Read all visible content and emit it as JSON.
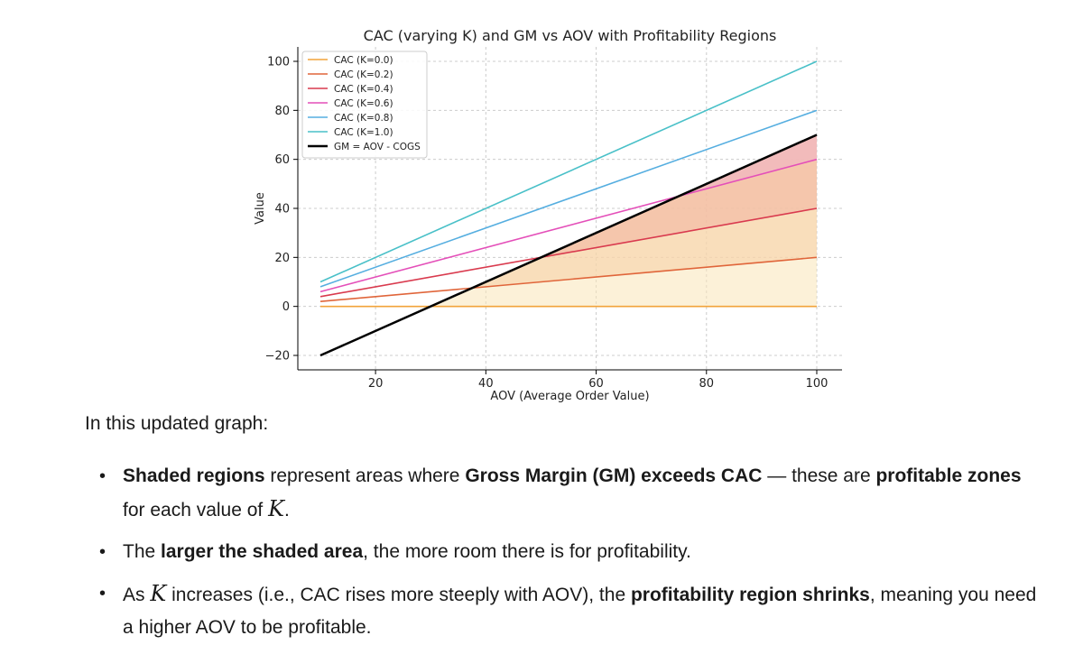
{
  "chart_data": {
    "type": "line",
    "title": "CAC (varying K) and GM vs AOV with Profitability Regions",
    "xlabel": "AOV (Average Order Value)",
    "ylabel": "Value",
    "xlim": [
      10,
      100
    ],
    "ylim": [
      -20,
      100
    ],
    "x_ticks": [
      20,
      40,
      60,
      80,
      100
    ],
    "y_ticks": [
      -20,
      0,
      20,
      40,
      60,
      80,
      100
    ],
    "grid": true,
    "legend_position": "top-left",
    "x": [
      10,
      100
    ],
    "series": [
      {
        "name": "CAC (K=0.0)",
        "color": "#f2a33a",
        "values": [
          0,
          0
        ]
      },
      {
        "name": "CAC (K=0.2)",
        "color": "#e0653a",
        "values": [
          2,
          20
        ]
      },
      {
        "name": "CAC (K=0.4)",
        "color": "#d93a4e",
        "values": [
          4,
          40
        ]
      },
      {
        "name": "CAC (K=0.6)",
        "color": "#e44fb9",
        "values": [
          6,
          60
        ]
      },
      {
        "name": "CAC (K=0.8)",
        "color": "#55aee0",
        "values": [
          8,
          80
        ]
      },
      {
        "name": "CAC (K=1.0)",
        "color": "#49c0c8",
        "values": [
          10,
          100
        ]
      },
      {
        "name": "GM = AOV - COGS",
        "color": "#000000",
        "values": [
          -20,
          70
        ]
      }
    ],
    "shaded_regions": [
      {
        "series": "CAC (K=0.0)",
        "color": "#f9e6b8"
      },
      {
        "series": "CAC (K=0.2)",
        "color": "#f5cda4"
      },
      {
        "series": "CAC (K=0.4)",
        "color": "#f2b3a1"
      },
      {
        "series": "CAC (K=0.6)",
        "color": "#efb2c8"
      }
    ]
  },
  "answer": {
    "intro": "In this updated graph:",
    "b1": {
      "s1": "Shaded regions",
      "t1": " represent areas where ",
      "s2": "Gross Margin (GM) exceeds CAC",
      "t2": " — these are ",
      "s3": "profitable zones",
      "t3": " for each value of ",
      "math": "K",
      "t4": "."
    },
    "b2": {
      "t1": "The ",
      "s1": "larger the shaded area",
      "t2": ", the more room there is for profitability."
    },
    "b3": {
      "t1": "As ",
      "math": "K",
      "t2": " increases (i.e., CAC rises more steeply with AOV), the ",
      "s1": "profitability region shrinks",
      "t3": ", meaning you need a higher AOV to be profitable."
    },
    "bullet_glyph": "•"
  }
}
